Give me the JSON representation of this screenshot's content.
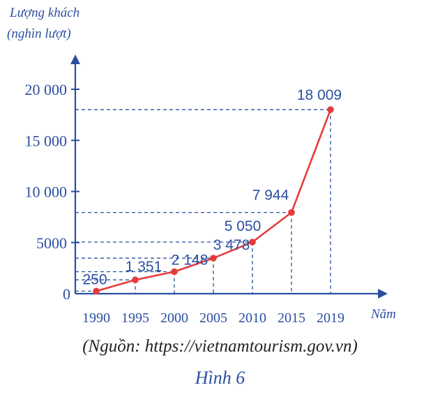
{
  "chart_data": {
    "type": "line",
    "ylabel_line1": "Lượng khách",
    "ylabel_line2": "(nghìn lượt)",
    "xlabel": "Năm",
    "x": [
      "1990",
      "1995",
      "2000",
      "2005",
      "2010",
      "2015",
      "2019"
    ],
    "values": [
      250,
      1351,
      2148,
      3478,
      5050,
      7944,
      18009
    ],
    "value_labels": [
      "250",
      "1 351",
      "2 148",
      "3 478",
      "5 050",
      "7 944",
      "18 009"
    ],
    "yticks": [
      0,
      5000,
      10000,
      15000,
      20000
    ],
    "ytick_labels": [
      "0",
      "5000",
      "10 000",
      "15 000",
      "20 000"
    ],
    "ylim": [
      0,
      20000
    ],
    "grid": "dashed guide lines to data points",
    "colors": {
      "axis": "#2b4fa0",
      "line": "#e53b3b",
      "marker": "#e53b3b",
      "guide": "#2b4fa0"
    }
  },
  "source": "(Nguồn: https://vietnamtourism.gov.vn)",
  "figure_label": "Hình 6"
}
